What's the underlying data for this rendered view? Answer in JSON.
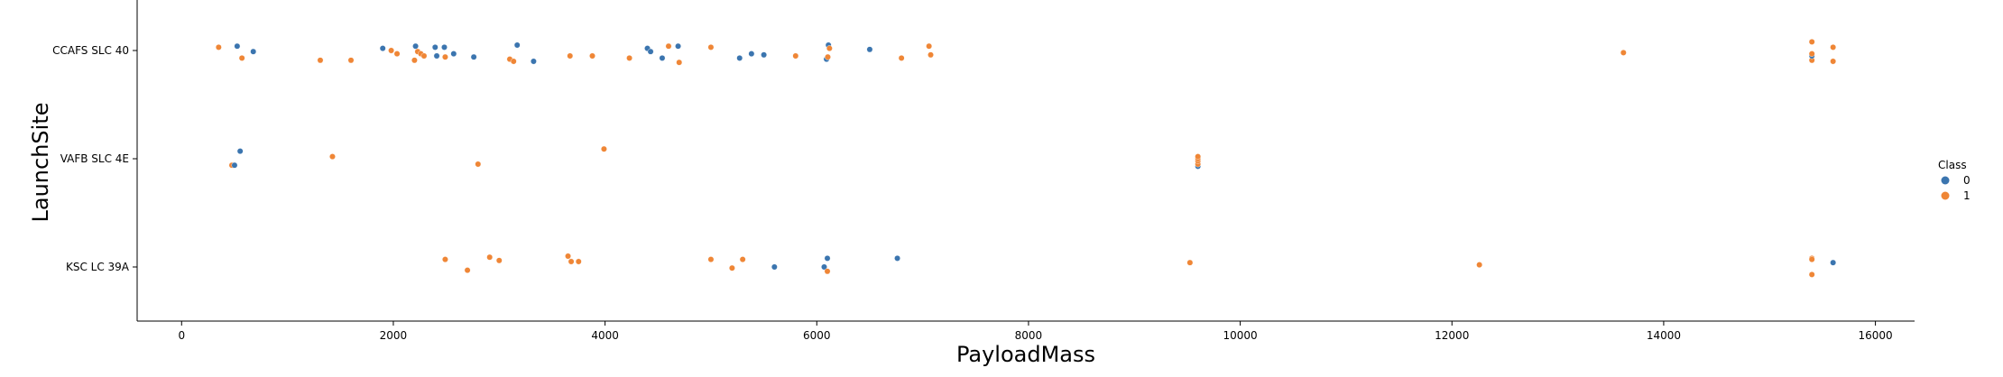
{
  "chart_data": {
    "type": "scatter",
    "xlabel": "PayloadMass",
    "ylabel": "LaunchSite",
    "xlim": [
      -420,
      16370
    ],
    "xticks": [
      0,
      2000,
      4000,
      6000,
      8000,
      10000,
      12000,
      14000,
      16000
    ],
    "categories": [
      "CCAFS SLC 40",
      "VAFB SLC 4E",
      "KSC LC 39A"
    ],
    "legend": {
      "title": "Class",
      "placement": "right",
      "entries": [
        "0",
        "1"
      ]
    },
    "colors": {
      "0": "#3b75af",
      "1": "#ef8636"
    },
    "grid": false,
    "points": [
      {
        "site": "CCAFS SLC 40",
        "x": 350,
        "y": -0.03,
        "class": "1"
      },
      {
        "site": "CCAFS SLC 40",
        "x": 525,
        "y": -0.04,
        "class": "0"
      },
      {
        "site": "CCAFS SLC 40",
        "x": 570,
        "y": 0.07,
        "class": "1"
      },
      {
        "site": "CCAFS SLC 40",
        "x": 677,
        "y": 0.01,
        "class": "0"
      },
      {
        "site": "CCAFS SLC 40",
        "x": 1310,
        "y": 0.09,
        "class": "1"
      },
      {
        "site": "CCAFS SLC 40",
        "x": 1600,
        "y": 0.09,
        "class": "1"
      },
      {
        "site": "CCAFS SLC 40",
        "x": 1900,
        "y": -0.02,
        "class": "0"
      },
      {
        "site": "CCAFS SLC 40",
        "x": 1980,
        "y": 0.0,
        "class": "1"
      },
      {
        "site": "CCAFS SLC 40",
        "x": 2035,
        "y": 0.03,
        "class": "1"
      },
      {
        "site": "CCAFS SLC 40",
        "x": 2200,
        "y": 0.09,
        "class": "1"
      },
      {
        "site": "CCAFS SLC 40",
        "x": 2210,
        "y": -0.04,
        "class": "0"
      },
      {
        "site": "CCAFS SLC 40",
        "x": 2230,
        "y": 0.01,
        "class": "1"
      },
      {
        "site": "CCAFS SLC 40",
        "x": 2260,
        "y": 0.03,
        "class": "1"
      },
      {
        "site": "CCAFS SLC 40",
        "x": 2290,
        "y": 0.05,
        "class": "1"
      },
      {
        "site": "CCAFS SLC 40",
        "x": 2395,
        "y": -0.03,
        "class": "0"
      },
      {
        "site": "CCAFS SLC 40",
        "x": 2410,
        "y": 0.05,
        "class": "0"
      },
      {
        "site": "CCAFS SLC 40",
        "x": 2482,
        "y": -0.03,
        "class": "0"
      },
      {
        "site": "CCAFS SLC 40",
        "x": 2490,
        "y": 0.06,
        "class": "1"
      },
      {
        "site": "CCAFS SLC 40",
        "x": 2570,
        "y": 0.03,
        "class": "0"
      },
      {
        "site": "CCAFS SLC 40",
        "x": 2760,
        "y": 0.06,
        "class": "0"
      },
      {
        "site": "CCAFS SLC 40",
        "x": 3100,
        "y": 0.08,
        "class": "1"
      },
      {
        "site": "CCAFS SLC 40",
        "x": 3136,
        "y": 0.1,
        "class": "1"
      },
      {
        "site": "CCAFS SLC 40",
        "x": 3170,
        "y": -0.05,
        "class": "0"
      },
      {
        "site": "CCAFS SLC 40",
        "x": 3325,
        "y": 0.1,
        "class": "0"
      },
      {
        "site": "CCAFS SLC 40",
        "x": 3669,
        "y": 0.05,
        "class": "1"
      },
      {
        "site": "CCAFS SLC 40",
        "x": 3880,
        "y": 0.05,
        "class": "1"
      },
      {
        "site": "CCAFS SLC 40",
        "x": 4230,
        "y": 0.07,
        "class": "1"
      },
      {
        "site": "CCAFS SLC 40",
        "x": 4400,
        "y": -0.02,
        "class": "0"
      },
      {
        "site": "CCAFS SLC 40",
        "x": 4430,
        "y": 0.01,
        "class": "0"
      },
      {
        "site": "CCAFS SLC 40",
        "x": 4540,
        "y": 0.07,
        "class": "0"
      },
      {
        "site": "CCAFS SLC 40",
        "x": 4600,
        "y": -0.04,
        "class": "1"
      },
      {
        "site": "CCAFS SLC 40",
        "x": 4690,
        "y": -0.04,
        "class": "0"
      },
      {
        "site": "CCAFS SLC 40",
        "x": 4700,
        "y": 0.11,
        "class": "1"
      },
      {
        "site": "CCAFS SLC 40",
        "x": 5000,
        "y": -0.03,
        "class": "1"
      },
      {
        "site": "CCAFS SLC 40",
        "x": 5271,
        "y": 0.07,
        "class": "0"
      },
      {
        "site": "CCAFS SLC 40",
        "x": 5383,
        "y": 0.03,
        "class": "0"
      },
      {
        "site": "CCAFS SLC 40",
        "x": 5500,
        "y": 0.04,
        "class": "0"
      },
      {
        "site": "CCAFS SLC 40",
        "x": 5800,
        "y": 0.05,
        "class": "1"
      },
      {
        "site": "CCAFS SLC 40",
        "x": 6092,
        "y": 0.08,
        "class": "0"
      },
      {
        "site": "CCAFS SLC 40",
        "x": 6104,
        "y": 0.06,
        "class": "1"
      },
      {
        "site": "CCAFS SLC 40",
        "x": 6110,
        "y": -0.05,
        "class": "0"
      },
      {
        "site": "CCAFS SLC 40",
        "x": 6120,
        "y": -0.02,
        "class": "1"
      },
      {
        "site": "CCAFS SLC 40",
        "x": 6500,
        "y": -0.01,
        "class": "0"
      },
      {
        "site": "CCAFS SLC 40",
        "x": 6800,
        "y": 0.07,
        "class": "1"
      },
      {
        "site": "CCAFS SLC 40",
        "x": 7060,
        "y": -0.04,
        "class": "1"
      },
      {
        "site": "CCAFS SLC 40",
        "x": 7076,
        "y": 0.04,
        "class": "1"
      },
      {
        "site": "CCAFS SLC 40",
        "x": 13620,
        "y": 0.02,
        "class": "1"
      },
      {
        "site": "CCAFS SLC 40",
        "x": 15400,
        "y": 0.09,
        "class": "1"
      },
      {
        "site": "CCAFS SLC 40",
        "x": 15400,
        "y": 0.05,
        "class": "0"
      },
      {
        "site": "CCAFS SLC 40",
        "x": 15400,
        "y": 0.03,
        "class": "1"
      },
      {
        "site": "CCAFS SLC 40",
        "x": 15400,
        "y": -0.08,
        "class": "1"
      },
      {
        "site": "CCAFS SLC 40",
        "x": 15600,
        "y": 0.1,
        "class": "1"
      },
      {
        "site": "CCAFS SLC 40",
        "x": 15600,
        "y": -0.03,
        "class": "1"
      },
      {
        "site": "VAFB SLC 4E",
        "x": 475,
        "y": 0.06,
        "class": "1"
      },
      {
        "site": "VAFB SLC 4E",
        "x": 500,
        "y": 0.06,
        "class": "0"
      },
      {
        "site": "VAFB SLC 4E",
        "x": 553,
        "y": -0.07,
        "class": "0"
      },
      {
        "site": "VAFB SLC 4E",
        "x": 1425,
        "y": -0.02,
        "class": "1"
      },
      {
        "site": "VAFB SLC 4E",
        "x": 2800,
        "y": 0.05,
        "class": "1"
      },
      {
        "site": "VAFB SLC 4E",
        "x": 3990,
        "y": -0.09,
        "class": "1"
      },
      {
        "site": "VAFB SLC 4E",
        "x": 9600,
        "y": 0.07,
        "class": "0"
      },
      {
        "site": "VAFB SLC 4E",
        "x": 9600,
        "y": 0.05,
        "class": "1"
      },
      {
        "site": "VAFB SLC 4E",
        "x": 9600,
        "y": 0.02,
        "class": "1"
      },
      {
        "site": "VAFB SLC 4E",
        "x": 9600,
        "y": 0.0,
        "class": "1"
      },
      {
        "site": "VAFB SLC 4E",
        "x": 9600,
        "y": -0.02,
        "class": "1"
      },
      {
        "site": "KSC LC 39A",
        "x": 2490,
        "y": -0.07,
        "class": "1"
      },
      {
        "site": "KSC LC 39A",
        "x": 2700,
        "y": 0.03,
        "class": "1"
      },
      {
        "site": "KSC LC 39A",
        "x": 2910,
        "y": -0.09,
        "class": "1"
      },
      {
        "site": "KSC LC 39A",
        "x": 3000,
        "y": -0.06,
        "class": "1"
      },
      {
        "site": "KSC LC 39A",
        "x": 3650,
        "y": -0.1,
        "class": "1"
      },
      {
        "site": "KSC LC 39A",
        "x": 3680,
        "y": -0.05,
        "class": "1"
      },
      {
        "site": "KSC LC 39A",
        "x": 3750,
        "y": -0.05,
        "class": "1"
      },
      {
        "site": "KSC LC 39A",
        "x": 5000,
        "y": -0.07,
        "class": "1"
      },
      {
        "site": "KSC LC 39A",
        "x": 5200,
        "y": 0.01,
        "class": "1"
      },
      {
        "site": "KSC LC 39A",
        "x": 5300,
        "y": -0.07,
        "class": "1"
      },
      {
        "site": "KSC LC 39A",
        "x": 5600,
        "y": 0.0,
        "class": "0"
      },
      {
        "site": "KSC LC 39A",
        "x": 6070,
        "y": 0.0,
        "class": "0"
      },
      {
        "site": "KSC LC 39A",
        "x": 6100,
        "y": -0.08,
        "class": "0"
      },
      {
        "site": "KSC LC 39A",
        "x": 6100,
        "y": 0.04,
        "class": "1"
      },
      {
        "site": "KSC LC 39A",
        "x": 6761,
        "y": -0.08,
        "class": "0"
      },
      {
        "site": "KSC LC 39A",
        "x": 9525,
        "y": -0.04,
        "class": "1"
      },
      {
        "site": "KSC LC 39A",
        "x": 12259,
        "y": -0.02,
        "class": "1"
      },
      {
        "site": "KSC LC 39A",
        "x": 15400,
        "y": -0.08,
        "class": "1"
      },
      {
        "site": "KSC LC 39A",
        "x": 15400,
        "y": -0.07,
        "class": "1"
      },
      {
        "site": "KSC LC 39A",
        "x": 15400,
        "y": 0.07,
        "class": "1"
      },
      {
        "site": "KSC LC 39A",
        "x": 15600,
        "y": -0.04,
        "class": "0"
      }
    ]
  }
}
